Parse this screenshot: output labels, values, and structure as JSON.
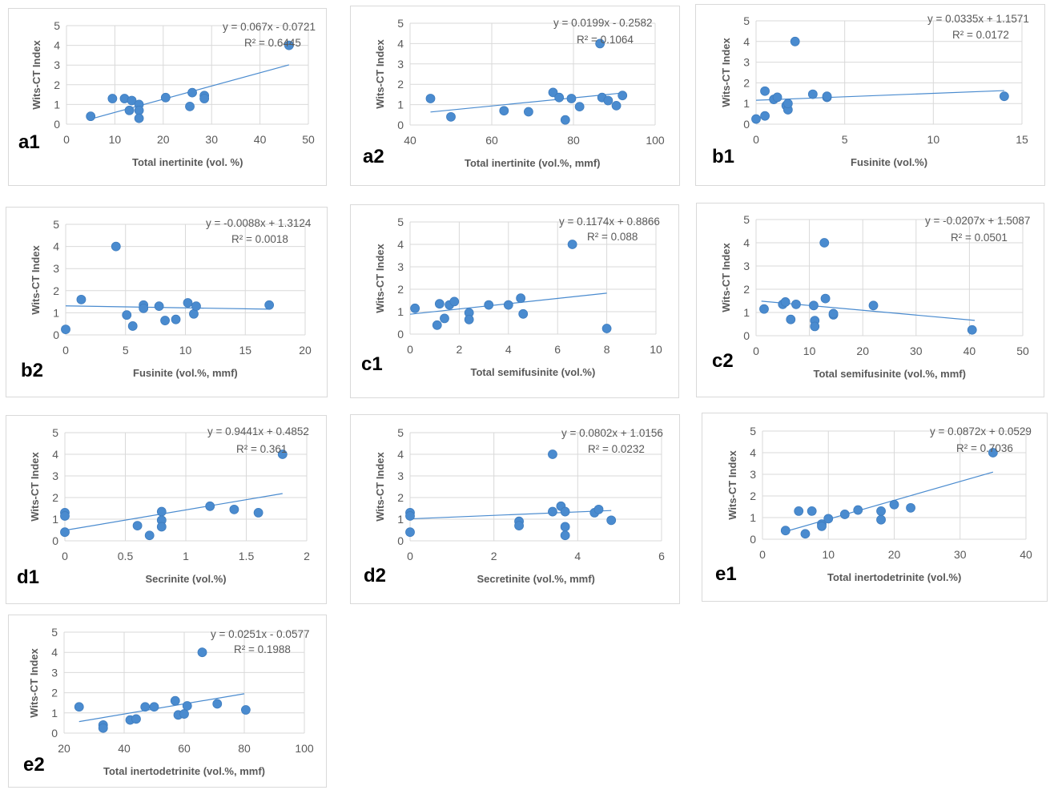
{
  "colors": {
    "marker": "#4a8bcf",
    "marker_edge": "#3f7dbf",
    "trend": "#4a8bcf",
    "grid": "#d9d9d9",
    "text": "#595959"
  },
  "chart_data": [
    {
      "id": "a1",
      "type": "scatter",
      "panel_label": "a1",
      "xlabel": "Total inertinite (vol. %)",
      "ylabel": "Wits-CT Index",
      "xlim": [
        0,
        50
      ],
      "xticks": [
        0,
        10,
        20,
        30,
        40,
        50
      ],
      "ylim": [
        0,
        5
      ],
      "yticks": [
        0,
        1,
        2,
        3,
        4,
        5
      ],
      "equation": "y = 0.067x - 0.0721",
      "r2": "R² = 0.6445",
      "trend": {
        "slope": 0.067,
        "intercept": -0.0721,
        "x_range": [
          5,
          46
        ]
      },
      "points": [
        [
          5,
          0.4
        ],
        [
          9.5,
          1.3
        ],
        [
          12,
          1.3
        ],
        [
          13,
          0.7
        ],
        [
          13.5,
          1.2
        ],
        [
          15,
          1.0
        ],
        [
          15,
          0.7
        ],
        [
          15,
          0.3
        ],
        [
          20.5,
          1.35
        ],
        [
          25.5,
          0.9
        ],
        [
          26,
          1.6
        ],
        [
          28.5,
          1.45
        ],
        [
          28.5,
          1.3
        ],
        [
          46,
          4.0
        ]
      ]
    },
    {
      "id": "a2",
      "type": "scatter",
      "panel_label": "a2",
      "xlabel": "Total inertinite (vol.%, mmf)",
      "ylabel": "Wits-CT Index",
      "xlim": [
        40,
        100
      ],
      "xticks": [
        40,
        60,
        80,
        100
      ],
      "ylim": [
        0,
        5
      ],
      "yticks": [
        0,
        1,
        2,
        3,
        4,
        5
      ],
      "equation": "y = 0.0199x - 0.2582",
      "r2": "R² = 0.1064",
      "trend": {
        "slope": 0.0199,
        "intercept": -0.2582,
        "x_range": [
          45,
          92
        ]
      },
      "points": [
        [
          45,
          1.3
        ],
        [
          50,
          0.4
        ],
        [
          63,
          0.7
        ],
        [
          69,
          0.65
        ],
        [
          75,
          1.6
        ],
        [
          76.5,
          1.35
        ],
        [
          78,
          0.25
        ],
        [
          79.5,
          1.3
        ],
        [
          81.5,
          0.9
        ],
        [
          86.5,
          4.0
        ],
        [
          87,
          1.35
        ],
        [
          88.5,
          1.2
        ],
        [
          90.5,
          0.95
        ],
        [
          92,
          1.45
        ]
      ]
    },
    {
      "id": "b1",
      "type": "scatter",
      "panel_label": "b1",
      "xlabel": "Fusinite (vol.%)",
      "ylabel": "Wits-CT Index",
      "xlim": [
        0,
        15
      ],
      "xticks": [
        0,
        5,
        10,
        15
      ],
      "ylim": [
        0,
        5
      ],
      "yticks": [
        0,
        1,
        2,
        3,
        4,
        5
      ],
      "equation": "y = 0.0335x + 1.1571",
      "r2": "R² = 0.0172",
      "trend": {
        "slope": 0.0335,
        "intercept": 1.1571,
        "x_range": [
          0,
          14
        ]
      },
      "points": [
        [
          0,
          0.25
        ],
        [
          0.5,
          0.4
        ],
        [
          0.5,
          1.6
        ],
        [
          1,
          1.2
        ],
        [
          1.2,
          1.3
        ],
        [
          1.7,
          0.9
        ],
        [
          1.8,
          0.7
        ],
        [
          1.8,
          1.0
        ],
        [
          2.2,
          4.0
        ],
        [
          3.2,
          1.45
        ],
        [
          4,
          1.3
        ],
        [
          4,
          1.35
        ],
        [
          14,
          1.35
        ]
      ]
    },
    {
      "id": "b2",
      "type": "scatter",
      "panel_label": "b2",
      "xlabel": "Fusinite (vol.%, mmf)",
      "ylabel": "Wits-CT Index",
      "xlim": [
        0,
        20
      ],
      "xticks": [
        0,
        5,
        10,
        15,
        20
      ],
      "ylim": [
        0,
        5
      ],
      "yticks": [
        0,
        1,
        2,
        3,
        4,
        5
      ],
      "equation": "y = -0.0088x + 1.3124",
      "r2": "R² = 0.0018",
      "trend": {
        "slope": -0.0088,
        "intercept": 1.3124,
        "x_range": [
          0,
          17
        ]
      },
      "points": [
        [
          0,
          0.25
        ],
        [
          1.3,
          1.6
        ],
        [
          4.2,
          4.0
        ],
        [
          5.1,
          0.9
        ],
        [
          5.6,
          0.4
        ],
        [
          6.5,
          1.35
        ],
        [
          6.5,
          1.2
        ],
        [
          7.8,
          1.3
        ],
        [
          8.3,
          0.65
        ],
        [
          9.2,
          0.7
        ],
        [
          10.2,
          1.45
        ],
        [
          10.7,
          0.95
        ],
        [
          10.9,
          1.3
        ],
        [
          17,
          1.35
        ]
      ]
    },
    {
      "id": "c1",
      "type": "scatter",
      "panel_label": "c1",
      "xlabel": "Total semifusinite (vol.%)",
      "ylabel": "Wits-CT Index",
      "xlim": [
        0,
        10
      ],
      "xticks": [
        0,
        2,
        4,
        6,
        8,
        10
      ],
      "ylim": [
        0,
        5
      ],
      "yticks": [
        0,
        1,
        2,
        3,
        4,
        5
      ],
      "equation": "y = 0.1174x + 0.8866",
      "r2": "R² = 0.088",
      "trend": {
        "slope": 0.1174,
        "intercept": 0.8866,
        "x_range": [
          0,
          8
        ]
      },
      "points": [
        [
          0.2,
          1.15
        ],
        [
          1.1,
          0.4
        ],
        [
          1.2,
          1.35
        ],
        [
          1.4,
          0.7
        ],
        [
          1.6,
          1.3
        ],
        [
          1.8,
          1.45
        ],
        [
          2.4,
          0.95
        ],
        [
          2.4,
          0.65
        ],
        [
          3.2,
          1.3
        ],
        [
          4,
          1.3
        ],
        [
          4.5,
          1.6
        ],
        [
          4.6,
          0.9
        ],
        [
          6.6,
          4.0
        ],
        [
          8,
          0.25
        ]
      ]
    },
    {
      "id": "c2",
      "type": "scatter",
      "panel_label": "c2",
      "xlabel": "Total semifusinite (vol.%, mmf)",
      "ylabel": "Wits-CT Index",
      "xlim": [
        0,
        50
      ],
      "xticks": [
        0,
        10,
        20,
        30,
        40,
        50
      ],
      "ylim": [
        0,
        5
      ],
      "yticks": [
        0,
        1,
        2,
        3,
        4,
        5
      ],
      "equation": "y = -0.0207x + 1.5087",
      "r2": "R² = 0.0501",
      "trend": {
        "slope": -0.0207,
        "intercept": 1.5087,
        "x_range": [
          1,
          41
        ]
      },
      "points": [
        [
          1.5,
          1.15
        ],
        [
          5,
          1.35
        ],
        [
          5.5,
          1.45
        ],
        [
          6.5,
          0.7
        ],
        [
          7.5,
          1.35
        ],
        [
          10.8,
          1.3
        ],
        [
          11,
          0.65
        ],
        [
          11,
          0.4
        ],
        [
          12.8,
          4.0
        ],
        [
          13,
          1.6
        ],
        [
          14.5,
          0.9
        ],
        [
          14.5,
          0.95
        ],
        [
          22,
          1.3
        ],
        [
          40.5,
          0.25
        ]
      ]
    },
    {
      "id": "d1",
      "type": "scatter",
      "panel_label": "d1",
      "xlabel": "Secrinite (vol.%)",
      "ylabel": "Wits-CT Index",
      "xlim": [
        0,
        2
      ],
      "xticks": [
        0,
        0.5,
        1,
        1.5,
        2
      ],
      "ylim": [
        0,
        5
      ],
      "yticks": [
        0,
        1,
        2,
        3,
        4,
        5
      ],
      "equation": "y = 0.9441x + 0.4852",
      "r2": "R² = 0.361",
      "trend": {
        "slope": 0.9441,
        "intercept": 0.4852,
        "x_range": [
          0,
          1.8
        ]
      },
      "points": [
        [
          0,
          1.3
        ],
        [
          0,
          1.15
        ],
        [
          0,
          0.4
        ],
        [
          0.6,
          0.7
        ],
        [
          0.7,
          0.25
        ],
        [
          0.8,
          1.35
        ],
        [
          0.8,
          0.95
        ],
        [
          0.8,
          0.65
        ],
        [
          1.2,
          1.6
        ],
        [
          1.4,
          1.45
        ],
        [
          1.6,
          1.3
        ],
        [
          1.8,
          4.0
        ]
      ]
    },
    {
      "id": "d2",
      "type": "scatter",
      "panel_label": "d2",
      "xlabel": "Secretinite (vol.%, mmf)",
      "ylabel": "Wits-CT Index",
      "xlim": [
        0,
        6
      ],
      "xticks": [
        0,
        2,
        4,
        6
      ],
      "ylim": [
        0,
        5
      ],
      "yticks": [
        0,
        1,
        2,
        3,
        4,
        5
      ],
      "equation": "y = 0.0802x + 1.0156",
      "r2": "R² = 0.0232",
      "trend": {
        "slope": 0.0802,
        "intercept": 1.0156,
        "x_range": [
          0,
          4.8
        ]
      },
      "points": [
        [
          0,
          1.3
        ],
        [
          0,
          1.15
        ],
        [
          0,
          0.4
        ],
        [
          2.6,
          0.9
        ],
        [
          2.6,
          0.7
        ],
        [
          3.4,
          4.0
        ],
        [
          3.4,
          1.35
        ],
        [
          3.6,
          1.6
        ],
        [
          3.7,
          1.35
        ],
        [
          3.7,
          0.65
        ],
        [
          3.7,
          0.25
        ],
        [
          4.4,
          1.3
        ],
        [
          4.5,
          1.45
        ],
        [
          4.8,
          0.95
        ]
      ]
    },
    {
      "id": "e1",
      "type": "scatter",
      "panel_label": "e1",
      "xlabel": "Total inertodetrinite (vol.%)",
      "ylabel": "Wits-CT Index",
      "xlim": [
        0,
        40
      ],
      "xticks": [
        0,
        10,
        20,
        30,
        40
      ],
      "ylim": [
        0,
        5
      ],
      "yticks": [
        0,
        1,
        2,
        3,
        4,
        5
      ],
      "equation": "y = 0.0872x + 0.0529",
      "r2": "R² = 0.7036",
      "trend": {
        "slope": 0.0872,
        "intercept": 0.0529,
        "x_range": [
          3,
          35
        ]
      },
      "points": [
        [
          3.5,
          0.4
        ],
        [
          5.5,
          1.3
        ],
        [
          6.5,
          0.25
        ],
        [
          7.5,
          1.3
        ],
        [
          9,
          0.7
        ],
        [
          9,
          0.6
        ],
        [
          10,
          0.95
        ],
        [
          12.5,
          1.15
        ],
        [
          14.5,
          1.35
        ],
        [
          18,
          1.3
        ],
        [
          18,
          0.9
        ],
        [
          20,
          1.6
        ],
        [
          22.5,
          1.45
        ],
        [
          35,
          4.0
        ]
      ]
    },
    {
      "id": "e2",
      "type": "scatter",
      "panel_label": "e2",
      "xlabel": "Total inertodetrinite (vol.%, mmf)",
      "ylabel": "Wits-CT Index",
      "xlim": [
        20,
        100
      ],
      "xticks": [
        20,
        40,
        60,
        80,
        100
      ],
      "ylim": [
        0,
        5
      ],
      "yticks": [
        0,
        1,
        2,
        3,
        4,
        5
      ],
      "equation": "y = 0.0251x - 0.0577",
      "r2": "R² = 0.1988",
      "trend": {
        "slope": 0.0251,
        "intercept": -0.0577,
        "x_range": [
          25,
          80
        ]
      },
      "points": [
        [
          25,
          1.3
        ],
        [
          33,
          0.4
        ],
        [
          33,
          0.25
        ],
        [
          42,
          0.65
        ],
        [
          44,
          0.7
        ],
        [
          47,
          1.3
        ],
        [
          50,
          1.3
        ],
        [
          57,
          1.6
        ],
        [
          58,
          0.9
        ],
        [
          60,
          0.95
        ],
        [
          61,
          1.35
        ],
        [
          66,
          4.0
        ],
        [
          71,
          1.45
        ],
        [
          80.5,
          1.15
        ]
      ]
    }
  ]
}
